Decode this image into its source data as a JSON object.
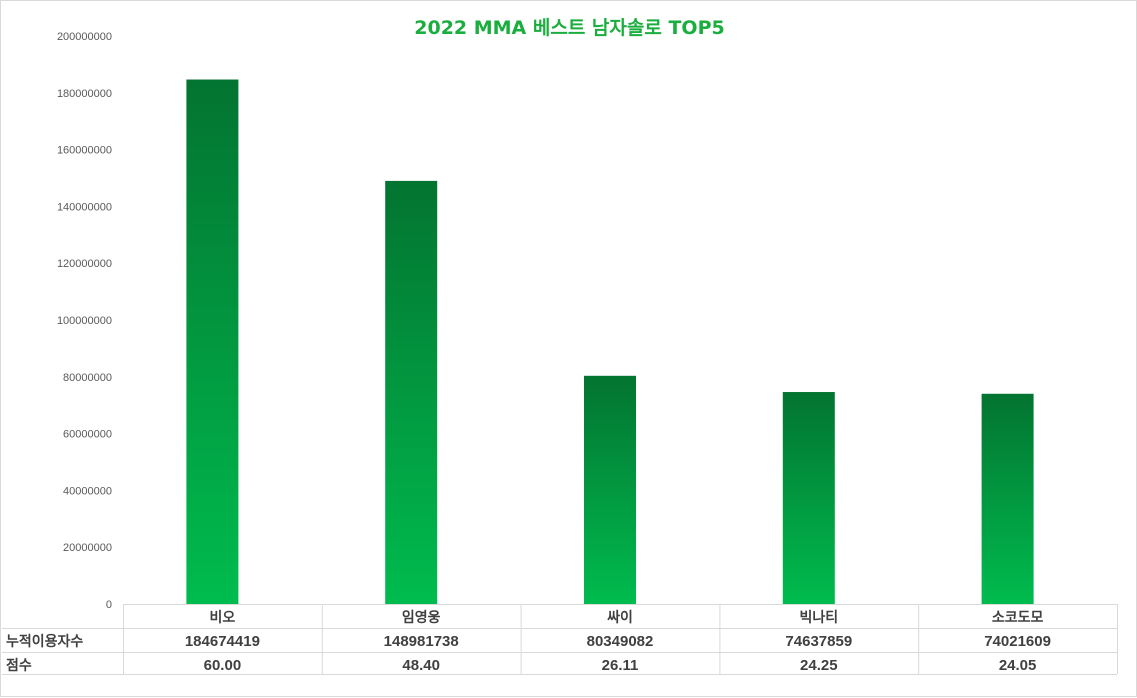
{
  "colors": {
    "title": "#1aae3e",
    "bar_top": "#037431",
    "bar_bottom": "#00bc4e",
    "grid": "#d9d9d9",
    "text": "#404040"
  },
  "chart_data": {
    "type": "bar",
    "title": "2022 MMA 베스트 남자솔로  TOP5",
    "categories": [
      "비오",
      "임영웅",
      "싸이",
      "빅나티",
      "소코도모"
    ],
    "series": [
      {
        "name": "누적이용자수",
        "values": [
          184674419,
          148981738,
          80349082,
          74637859,
          74021609
        ]
      }
    ],
    "table_rows": [
      {
        "label": "누적이용자수",
        "values": [
          "184674419",
          "148981738",
          "80349082",
          "74637859",
          "74021609"
        ]
      },
      {
        "label": "점수",
        "values": [
          "60.00",
          "48.40",
          "26.11",
          "24.25",
          "24.05"
        ]
      }
    ],
    "yticks": [
      "0",
      "20000000",
      "40000000",
      "60000000",
      "80000000",
      "100000000",
      "120000000",
      "140000000",
      "160000000",
      "180000000",
      "200000000"
    ],
    "ylim": [
      0,
      200000000
    ],
    "grid": false,
    "legend": "none"
  }
}
